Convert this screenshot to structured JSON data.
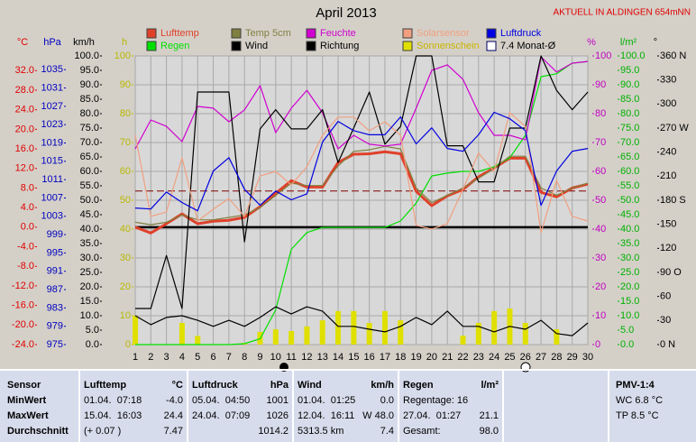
{
  "chart_data": {
    "type": "line",
    "title": "April 2013",
    "subtitle": "AKTUELL IN ALDINGEN 654mNN",
    "x": [
      1,
      2,
      3,
      4,
      5,
      6,
      7,
      8,
      9,
      10,
      11,
      12,
      13,
      14,
      15,
      16,
      17,
      18,
      19,
      20,
      21,
      22,
      23,
      24,
      25,
      26,
      27,
      28,
      29,
      30
    ],
    "xlim": [
      1,
      30
    ],
    "xticks": [
      1,
      2,
      3,
      4,
      5,
      6,
      7,
      8,
      9,
      10,
      11,
      12,
      13,
      14,
      15,
      16,
      17,
      18,
      19,
      20,
      21,
      22,
      23,
      24,
      25,
      26,
      27,
      28,
      29,
      30
    ],
    "grid": true,
    "ylabel": "°C",
    "ycolor": "#e00000",
    "ylim": [
      -24,
      35
    ],
    "yticks": [
      {
        "value": 32,
        "label": "32.0"
      },
      {
        "value": 28,
        "label": "28.0"
      },
      {
        "value": 24,
        "label": "24.0"
      },
      {
        "value": 20,
        "label": "20.0"
      },
      {
        "value": 16,
        "label": "16.0"
      },
      {
        "value": 12,
        "label": "12.0"
      },
      {
        "value": 8,
        "label": "8.0"
      },
      {
        "value": 4,
        "label": "4.0"
      },
      {
        "value": 0,
        "label": "0.0"
      },
      {
        "value": -4,
        "label": "-4.0"
      },
      {
        "value": -8,
        "label": "-8.0"
      },
      {
        "value": -12,
        "label": "-12.0"
      },
      {
        "value": -16,
        "label": "-16.0"
      },
      {
        "value": -20,
        "label": "-20.0"
      },
      {
        "value": -24,
        "label": "-24.0"
      }
    ],
    "y2label": "hPa",
    "y2color": "#0000c0",
    "y2lim": [
      975,
      1038
    ],
    "y2ticks": [
      1035,
      1031,
      1027,
      1023,
      1019,
      1015,
      1011,
      1007,
      1003,
      999,
      995,
      991,
      987,
      983,
      979,
      975
    ],
    "y3label": "km/h",
    "y3color": "#000000",
    "y3lim": [
      0,
      100
    ],
    "y3ticks": [
      {
        "value": 100,
        "label": "100.0"
      },
      {
        "value": 95,
        "label": "95.0"
      },
      {
        "value": 90,
        "label": "90.0"
      },
      {
        "value": 85,
        "label": "85.0"
      },
      {
        "value": 80,
        "label": "80.0"
      },
      {
        "value": 75,
        "label": "75.0"
      },
      {
        "value": 70,
        "label": "70.0"
      },
      {
        "value": 65,
        "label": "65.0"
      },
      {
        "value": 60,
        "label": "60.0"
      },
      {
        "value": 55,
        "label": "55.0"
      },
      {
        "value": 50,
        "label": "50.0"
      },
      {
        "value": 45,
        "label": "45.0"
      },
      {
        "value": 40,
        "label": "40.0"
      },
      {
        "value": 35,
        "label": "35.0"
      },
      {
        "value": 30,
        "label": "30.0"
      },
      {
        "value": 25,
        "label": "25.0"
      },
      {
        "value": 20,
        "label": "20.0"
      },
      {
        "value": 15,
        "label": "15.0"
      },
      {
        "value": 10,
        "label": "10.0"
      },
      {
        "value": 5,
        "label": "5.0"
      },
      {
        "value": 0,
        "label": "0.0"
      }
    ],
    "y4label": "h",
    "y4color": "#b8b800",
    "y4lim": [
      0,
      100
    ],
    "y4ticks": [
      100,
      90,
      80,
      70,
      60,
      50,
      40,
      30,
      20,
      10,
      0
    ],
    "y5label": "%",
    "y5color": "#c000c0",
    "y5lim": [
      0,
      100
    ],
    "y5ticks": [
      100,
      90,
      80,
      70,
      60,
      50,
      40,
      30,
      20,
      10,
      0
    ],
    "y6label": "l/m²",
    "y6color": "#00b000",
    "y6lim": [
      0,
      100
    ],
    "y6ticks": [
      {
        "value": 100,
        "label": "100.0"
      },
      {
        "value": 95,
        "label": "95.0"
      },
      {
        "value": 90,
        "label": "90.0"
      },
      {
        "value": 85,
        "label": "85.0"
      },
      {
        "value": 80,
        "label": "80.0"
      },
      {
        "value": 75,
        "label": "75.0"
      },
      {
        "value": 70,
        "label": "70.0"
      },
      {
        "value": 65,
        "label": "65.0"
      },
      {
        "value": 60,
        "label": "60.0"
      },
      {
        "value": 55,
        "label": "55.0"
      },
      {
        "value": 50,
        "label": "50.0"
      },
      {
        "value": 45,
        "label": "45.0"
      },
      {
        "value": 40,
        "label": "40.0"
      },
      {
        "value": 35,
        "label": "35.0"
      },
      {
        "value": 30,
        "label": "30.0"
      },
      {
        "value": 25,
        "label": "25.0"
      },
      {
        "value": 20,
        "label": "20.0"
      },
      {
        "value": 15,
        "label": "15.0"
      },
      {
        "value": 10,
        "label": "10.0"
      },
      {
        "value": 5,
        "label": "5.0"
      },
      {
        "value": 0,
        "label": "0.0"
      }
    ],
    "y7label": "°",
    "y7color": "#000000",
    "y7lim": [
      0,
      360
    ],
    "y7ticks": [
      {
        "value": 360,
        "label": "360 N"
      },
      330,
      300,
      {
        "value": 270,
        "label": "270 W"
      },
      240,
      210,
      {
        "value": 180,
        "label": "180 S"
      },
      150,
      120,
      {
        "value": 90,
        "label": "90 O"
      },
      60,
      30,
      {
        "value": 0,
        "label": "0 N"
      }
    ],
    "series": [
      {
        "name": "Lufttemp",
        "type": "line",
        "axis": "y",
        "color": "#e0402a",
        "values": [
          0.0,
          -1.2,
          0.7,
          2.7,
          0.7,
          1.2,
          1.4,
          2.0,
          4.2,
          6.9,
          9.5,
          8.2,
          8.2,
          13.2,
          14.9,
          15.0,
          15.4,
          15.0,
          7.3,
          4.4,
          6.4,
          7.7,
          10.3,
          12.1,
          14.1,
          14.1,
          7.1,
          6.2,
          8.0,
          8.8
        ]
      },
      {
        "name": "Regen",
        "type": "line",
        "axis": "y6",
        "color": "#00e000",
        "values": [
          0,
          0,
          0,
          0,
          0,
          0,
          0,
          0.3,
          2,
          12,
          33,
          38.8,
          40.6,
          40.6,
          40.6,
          40.6,
          40.6,
          42.8,
          49,
          58.4,
          59.4,
          60,
          60,
          61.6,
          64.7,
          72.5,
          92.8,
          93.8,
          97.5,
          98.1
        ]
      },
      {
        "name": "Temp 5cm",
        "type": "line",
        "axis": "y",
        "color": "#808040",
        "values": [
          1.0,
          0.5,
          1.0,
          2.5,
          1.5,
          1.5,
          2.0,
          2.5,
          4.0,
          6.5,
          9.0,
          8.5,
          8.5,
          12.5,
          15.5,
          15.8,
          16.5,
          16.0,
          8.0,
          5.0,
          6.5,
          8.0,
          10.0,
          12.0,
          14.5,
          14.5,
          8.0,
          6.5,
          8.0,
          9.0
        ]
      },
      {
        "name": "Wind",
        "type": "line",
        "axis": "y3",
        "color": "#000000",
        "values": [
          10,
          6.9,
          9.4,
          10,
          8.4,
          6.3,
          8.4,
          6.3,
          9.4,
          13.1,
          10.6,
          13.1,
          11.6,
          6.3,
          6.3,
          5.3,
          4.4,
          6.3,
          9.4,
          6.9,
          11.6,
          6.3,
          6.3,
          4.4,
          6.3,
          5.3,
          8.4,
          3.8,
          3.1,
          7.5
        ]
      },
      {
        "name": "Feuchte",
        "type": "line",
        "axis": "y5",
        "color": "#d000d0",
        "values": [
          67.8,
          77.8,
          75.6,
          70.3,
          82.5,
          81.9,
          77.2,
          81.3,
          89.7,
          73.4,
          81.9,
          88.1,
          80.3,
          67.8,
          72.5,
          69.4,
          68.8,
          69.4,
          81.9,
          95,
          96.9,
          91.9,
          80.3,
          72.5,
          72.5,
          70.9,
          99.7,
          94.4,
          97.5,
          98.1
        ]
      },
      {
        "name": "Richtung",
        "type": "line",
        "axis": "y7",
        "color": "#000000",
        "values": [
          45,
          45,
          111,
          45,
          315,
          315,
          315,
          128,
          269,
          293,
          269,
          269,
          293,
          227,
          270,
          315,
          250,
          272,
          360,
          360,
          248,
          248,
          203,
          203,
          270,
          270,
          360,
          317,
          293,
          315
        ]
      },
      {
        "name": "Solarsensor",
        "type": "line",
        "axis": "y5",
        "color": "#f0a080",
        "values": [
          72.5,
          44.4,
          45.9,
          64.7,
          42.8,
          46.9,
          50.6,
          44.4,
          58.4,
          60,
          55.3,
          61.6,
          72.5,
          78.8,
          78.8,
          74.1,
          77.2,
          72.5,
          41.3,
          40,
          41.9,
          53.8,
          66.3,
          60,
          80.3,
          75.6,
          38.8,
          56.9,
          44.4,
          42.8
        ]
      },
      {
        "name": "Sonnenschein",
        "type": "bar",
        "axis": "y4",
        "color": "#e0e000",
        "values": [
          10,
          0,
          0,
          7.5,
          3,
          0,
          0,
          0.6,
          4.4,
          5.3,
          4.7,
          6.3,
          8.4,
          11.6,
          11.6,
          7.5,
          11.6,
          8.4,
          0,
          0,
          0,
          3.1,
          7.5,
          11.6,
          12.5,
          7.5,
          0,
          5.3,
          0,
          0
        ]
      },
      {
        "name": "Luftdruck",
        "type": "line",
        "axis": "y2",
        "color": "#0000e0",
        "values": [
          1004.8,
          1004.6,
          1008.3,
          1006.0,
          1004.2,
          1012.9,
          1015.8,
          1008.9,
          1005.4,
          1008.5,
          1006.6,
          1007.9,
          1019.2,
          1023.7,
          1021.7,
          1020.8,
          1020.8,
          1024.7,
          1018.8,
          1022.3,
          1017.8,
          1017.2,
          1020.8,
          1025.7,
          1024.3,
          1021.7,
          1005.4,
          1012.9,
          1017.2,
          1017.8
        ]
      },
      {
        "name": "7.4 Monat-Ø",
        "type": "hline",
        "axis": "y",
        "color": "#800000",
        "value": 7.4
      }
    ]
  },
  "table": {
    "corner": "Sensor",
    "columns": [
      {
        "title": "Lufttemp",
        "unit": "°C"
      },
      {
        "title": "Luftdruck",
        "unit": "hPa"
      },
      {
        "title": "Wind",
        "unit": "km/h"
      },
      {
        "title": "Regen",
        "unit": "l/m²"
      },
      {
        "title": "PMV-1:4"
      }
    ],
    "rows": [
      {
        "label": "MinWert",
        "cells": [
          {
            "left": "01.04.  07:18",
            "right": "-4.0"
          },
          {
            "left": "05.04.  04:50",
            "right": "1001"
          },
          {
            "left": "01.04.  01:25",
            "right": "0.0"
          },
          {
            "left": "Regentage: 16"
          },
          {
            "left": "WC 6.8 °C"
          }
        ]
      },
      {
        "label": "MaxWert",
        "cells": [
          {
            "left": "15.04.  16:03",
            "right": "24.4"
          },
          {
            "left": "24.04.  07:09",
            "right": "1026"
          },
          {
            "left": "12.04.  16:11",
            "right": "W 48.0"
          },
          {
            "left": "27.04.  01:27",
            "right": "21.1"
          },
          {
            "left": "TP 8.5 °C"
          }
        ]
      },
      {
        "label": "Durchschnitt",
        "cells": [
          {
            "left": "(+ 0.07 )",
            "right": "7.47"
          },
          {
            "right": "1014.2"
          },
          {
            "left": "5313.5 km",
            "right": "7.4"
          },
          {
            "left": "Gesamt:",
            "right": "98.0"
          }
        ]
      }
    ]
  }
}
